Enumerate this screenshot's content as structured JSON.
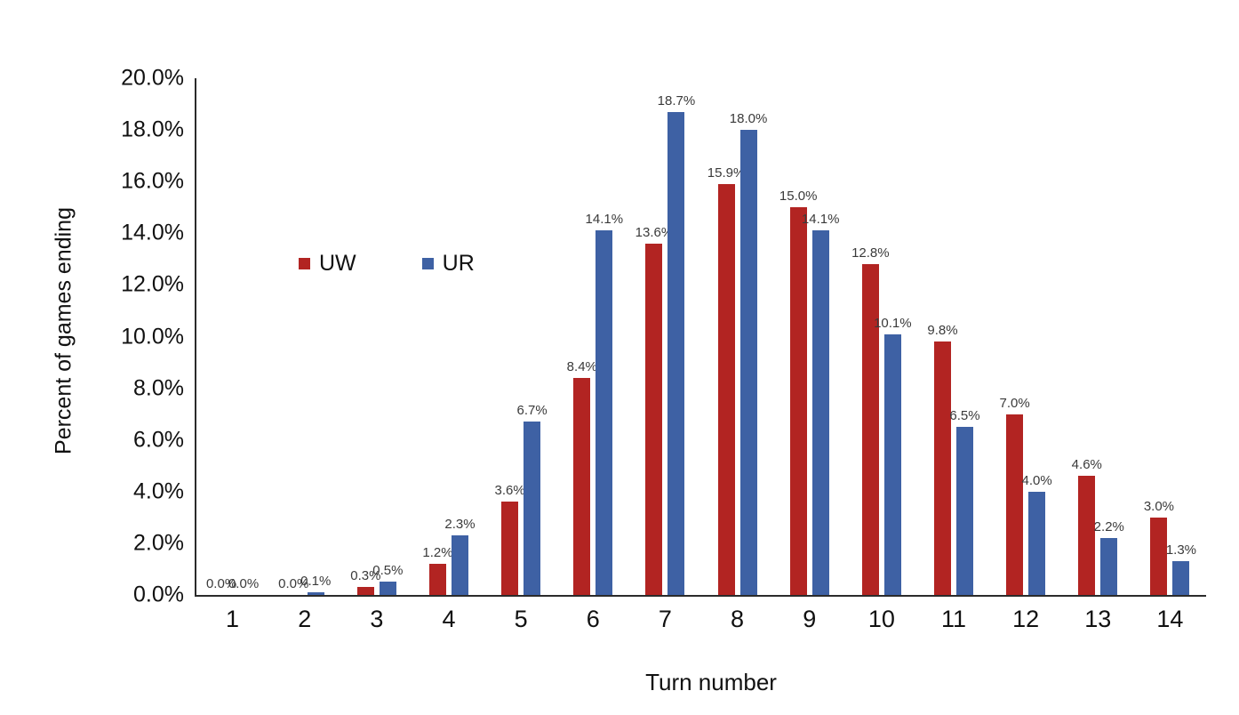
{
  "chart_data": {
    "type": "bar",
    "title": "",
    "xlabel": "Turn number",
    "ylabel": "Percent of games ending",
    "categories": [
      "1",
      "2",
      "3",
      "4",
      "5",
      "6",
      "7",
      "8",
      "9",
      "10",
      "11",
      "12",
      "13",
      "14"
    ],
    "series": [
      {
        "name": "UW",
        "color": "#b22422",
        "values": [
          0.0,
          0.0,
          0.3,
          1.2,
          3.6,
          8.4,
          13.6,
          15.9,
          15.0,
          12.8,
          9.8,
          7.0,
          4.6,
          3.0
        ]
      },
      {
        "name": "UR",
        "color": "#3e61a4",
        "values": [
          0.0,
          0.1,
          0.5,
          2.3,
          6.7,
          14.1,
          18.7,
          18.0,
          14.1,
          10.1,
          6.5,
          4.0,
          2.2,
          1.3
        ]
      }
    ],
    "data_label_format": "0.0%",
    "data_labels": true,
    "ylim": [
      0,
      20
    ],
    "ytick_step": 2,
    "ytick_labels": [
      "0.0%",
      "2.0%",
      "4.0%",
      "6.0%",
      "8.0%",
      "10.0%",
      "12.0%",
      "14.0%",
      "16.0%",
      "18.0%",
      "20.0%"
    ],
    "grid": false,
    "legend_position": "inside-upper-left",
    "legend_entries": [
      "UW",
      "UR"
    ]
  }
}
